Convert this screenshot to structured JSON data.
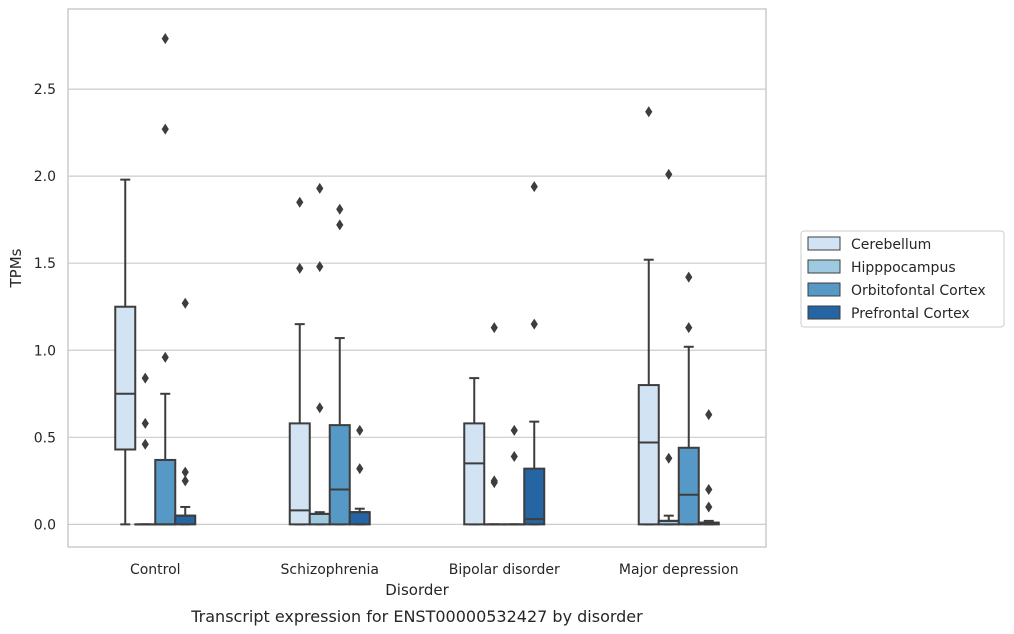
{
  "chart_data": {
    "type": "box",
    "title": "",
    "xlabel": "Disorder",
    "ylabel": "TPMs",
    "caption": "Transcript expression for ENST00000532427 by disorder",
    "categories": [
      "Control",
      "Schizophrenia",
      "Bipolar disorder",
      "Major depression"
    ],
    "ylim": [
      -0.13,
      2.96
    ],
    "yticks": [
      0.0,
      0.5,
      1.0,
      1.5,
      2.0,
      2.5
    ],
    "ytick_labels": [
      "0.0",
      "0.5",
      "1.0",
      "1.5",
      "2.0",
      "2.5"
    ],
    "grid": "horizontal",
    "legend_position": "right",
    "series": [
      {
        "name": "Cerebellum",
        "color": "#d2e3f3",
        "boxes": [
          {
            "whisker_low": 0.0,
            "q1": 0.43,
            "median": 0.75,
            "q3": 1.25,
            "whisker_high": 1.98,
            "outliers": []
          },
          {
            "whisker_low": 0.0,
            "q1": 0.0,
            "median": 0.08,
            "q3": 0.58,
            "whisker_high": 1.15,
            "outliers": [
              1.47,
              1.85
            ]
          },
          {
            "whisker_low": 0.0,
            "q1": 0.0,
            "median": 0.35,
            "q3": 0.58,
            "whisker_high": 0.84,
            "outliers": []
          },
          {
            "whisker_low": 0.0,
            "q1": 0.0,
            "median": 0.47,
            "q3": 0.8,
            "whisker_high": 1.52,
            "outliers": [
              2.37
            ]
          }
        ]
      },
      {
        "name": "Hipppocampus",
        "color": "#9ecae1",
        "boxes": [
          {
            "whisker_low": 0.0,
            "q1": 0.0,
            "median": 0.0,
            "q3": 0.0,
            "whisker_high": 0.0,
            "outliers": [
              0.46,
              0.58,
              0.84
            ]
          },
          {
            "whisker_low": 0.0,
            "q1": 0.0,
            "median": 0.06,
            "q3": 0.06,
            "whisker_high": 0.07,
            "outliers": [
              0.67,
              1.48,
              1.93
            ]
          },
          {
            "whisker_low": 0.0,
            "q1": 0.0,
            "median": 0.0,
            "q3": 0.0,
            "whisker_high": 0.0,
            "outliers": [
              0.24,
              0.25,
              1.13
            ]
          },
          {
            "whisker_low": 0.0,
            "q1": 0.0,
            "median": 0.02,
            "q3": 0.02,
            "whisker_high": 0.05,
            "outliers": [
              0.38,
              2.01
            ]
          }
        ]
      },
      {
        "name": "Orbitofontal Cortex",
        "color": "#5698c6",
        "boxes": [
          {
            "whisker_low": 0.0,
            "q1": 0.0,
            "median": 0.0,
            "q3": 0.37,
            "whisker_high": 0.75,
            "outliers": [
              0.96,
              2.27,
              2.79
            ]
          },
          {
            "whisker_low": 0.0,
            "q1": 0.0,
            "median": 0.2,
            "q3": 0.57,
            "whisker_high": 1.07,
            "outliers": [
              1.72,
              1.81
            ]
          },
          {
            "whisker_low": 0.0,
            "q1": 0.0,
            "median": 0.0,
            "q3": 0.0,
            "whisker_high": 0.0,
            "outliers": [
              0.39,
              0.54
            ]
          },
          {
            "whisker_low": 0.0,
            "q1": 0.0,
            "median": 0.17,
            "q3": 0.44,
            "whisker_high": 1.02,
            "outliers": [
              1.13,
              1.42
            ]
          }
        ]
      },
      {
        "name": "Prefrontal Cortex",
        "color": "#2565a4",
        "boxes": [
          {
            "whisker_low": 0.0,
            "q1": 0.0,
            "median": 0.05,
            "q3": 0.05,
            "whisker_high": 0.1,
            "outliers": [
              0.25,
              0.3,
              1.27
            ]
          },
          {
            "whisker_low": 0.0,
            "q1": 0.0,
            "median": 0.07,
            "q3": 0.07,
            "whisker_high": 0.09,
            "outliers": [
              0.32,
              0.54
            ]
          },
          {
            "whisker_low": 0.0,
            "q1": 0.0,
            "median": 0.03,
            "q3": 0.32,
            "whisker_high": 0.59,
            "outliers": [
              1.15,
              1.94
            ]
          },
          {
            "whisker_low": 0.0,
            "q1": 0.0,
            "median": 0.01,
            "q3": 0.01,
            "whisker_high": 0.02,
            "outliers": [
              0.1,
              0.2,
              0.63
            ]
          }
        ]
      }
    ]
  }
}
